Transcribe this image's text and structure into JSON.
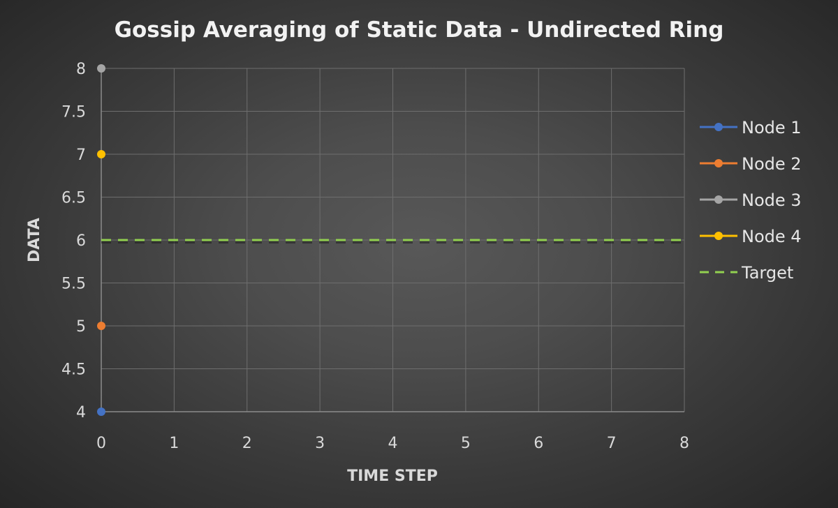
{
  "chart_data": {
    "type": "line",
    "title": "Gossip Averaging of Static Data - Undirected Ring",
    "xlabel": "TIME STEP",
    "ylabel": "DATA",
    "xlim": [
      0,
      8
    ],
    "ylim": [
      4,
      8
    ],
    "x_ticks": [
      "0",
      "1",
      "2",
      "3",
      "4",
      "5",
      "6",
      "7",
      "8"
    ],
    "y_ticks": [
      "4",
      "4.5",
      "5",
      "5.5",
      "6",
      "6.5",
      "7",
      "7.5",
      "8"
    ],
    "grid": true,
    "legend_position": "right",
    "series": [
      {
        "name": "Node 1",
        "color": "#4472c4",
        "style": "line-marker",
        "points": [
          {
            "x": 0,
            "y": 4
          }
        ]
      },
      {
        "name": "Node 2",
        "color": "#ed7d31",
        "style": "line-marker",
        "points": [
          {
            "x": 0,
            "y": 5
          }
        ]
      },
      {
        "name": "Node 3",
        "color": "#a5a5a5",
        "style": "line-marker",
        "points": [
          {
            "x": 0,
            "y": 8
          }
        ]
      },
      {
        "name": "Node 4",
        "color": "#ffc000",
        "style": "line-marker",
        "points": [
          {
            "x": 0,
            "y": 7
          }
        ]
      },
      {
        "name": "Target",
        "color": "#92d050",
        "style": "dashed",
        "points": [
          {
            "x": 0,
            "y": 6
          },
          {
            "x": 8,
            "y": 6
          }
        ]
      }
    ]
  }
}
